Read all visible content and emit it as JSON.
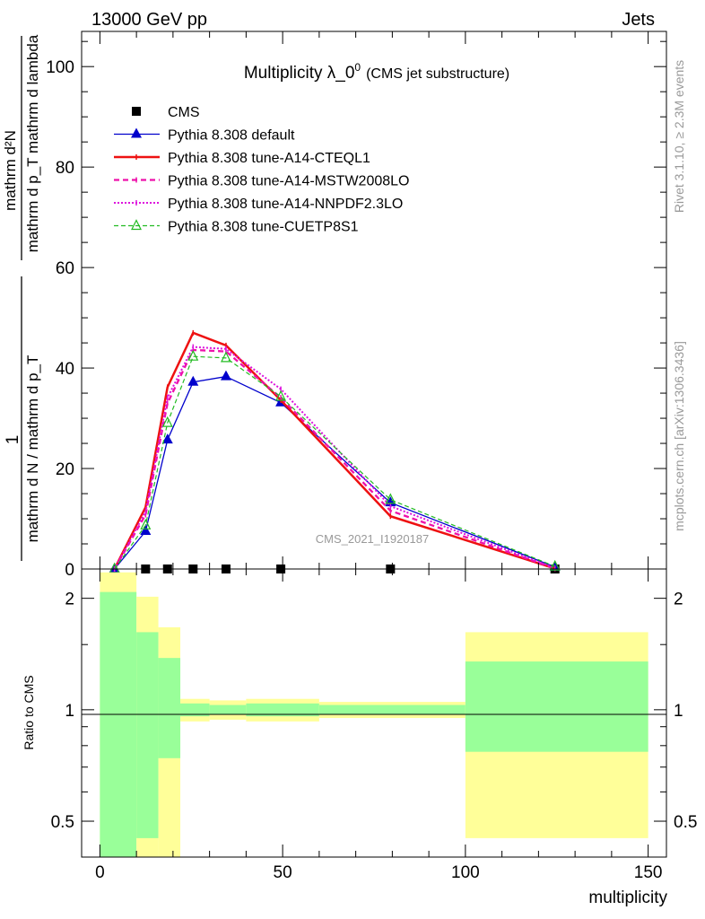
{
  "header": {
    "left": "13000 GeV pp",
    "right": "Jets"
  },
  "title": {
    "main": "Multiplicity λ_0",
    "sup": "0",
    "sub": "(CMS jet substructure)"
  },
  "ylabel": {
    "num": "mathrm d²N",
    "den": "mathrm d p_T mathrm d lambda",
    "pre_num": "1",
    "pre_den": "mathrm d N / mathrm d p_T"
  },
  "side": {
    "top": "Rivet 3.1.10, ≥ 2.3M events",
    "bottom": "mcplots.cern.ch [arXiv:1306.3436]"
  },
  "watermark": "CMS_2021_I1920187",
  "ratio_label": "Ratio to CMS",
  "xlabel": "multiplicity",
  "colors": {
    "cms": "#000000",
    "default": "#0000cc",
    "cteql1": "#ee1111",
    "mstw": "#ee11aa",
    "nnpdf": "#dd11dd",
    "cuetp": "#22bb22",
    "band_inner": "#99ff99",
    "band_outer": "#ffff99"
  },
  "chart_data": {
    "type": "line",
    "x": [
      4,
      12.5,
      18.5,
      25.5,
      34.5,
      49.5,
      79.5,
      124.5
    ],
    "xlim": [
      -5,
      155
    ],
    "ylim": [
      0,
      107
    ],
    "xticks": [
      0,
      50,
      100,
      150
    ],
    "yticks": [
      0,
      20,
      40,
      60,
      80,
      100
    ],
    "series": [
      {
        "name": "CMS",
        "key": "cms",
        "values": [
          0,
          0,
          0,
          0,
          0,
          0,
          0,
          0
        ]
      },
      {
        "name": "Pythia 8.308 default",
        "key": "default",
        "values": [
          0,
          7.5,
          25.7,
          37.2,
          38.3,
          33.1,
          13.2,
          0.4
        ]
      },
      {
        "name": "Pythia 8.308 tune-A14-CTEQL1",
        "key": "cteql1",
        "values": [
          0,
          12.3,
          36.2,
          47,
          44.5,
          33.6,
          10.5,
          0.1
        ]
      },
      {
        "name": "Pythia 8.308 tune-A14-MSTW2008LO",
        "key": "mstw",
        "values": [
          0,
          10.8,
          33,
          43.6,
          43.3,
          34.1,
          11.6,
          0.1
        ]
      },
      {
        "name": "Pythia 8.308 tune-A14-NNPDF2.3LO",
        "key": "nnpdf",
        "values": [
          0,
          11.4,
          34.1,
          44.2,
          43.8,
          35.8,
          12.5,
          0.2
        ]
      },
      {
        "name": "Pythia 8.308 tune-CUETP8S1",
        "key": "cuetp",
        "values": [
          0,
          8.7,
          29.1,
          42.3,
          42,
          34.3,
          13.8,
          0.5
        ]
      }
    ],
    "ratio": {
      "yticks": [
        0.5,
        1,
        2
      ],
      "bins": [
        [
          0,
          10
        ],
        [
          10,
          16
        ],
        [
          16,
          22
        ],
        [
          22,
          30
        ],
        [
          30,
          40
        ],
        [
          40,
          60
        ],
        [
          60,
          100
        ],
        [
          100,
          150
        ]
      ],
      "inner": [
        [
          0.33,
          2.08
        ],
        [
          0.45,
          1.62
        ],
        [
          0.74,
          1.38
        ],
        [
          0.96,
          1.04
        ],
        [
          0.97,
          1.03
        ],
        [
          0.96,
          1.04
        ],
        [
          0.97,
          1.03
        ],
        [
          0.77,
          1.35
        ]
      ],
      "outer": [
        [
          0.33,
          2.35
        ],
        [
          0.33,
          2.02
        ],
        [
          0.33,
          1.67
        ],
        [
          0.93,
          1.07
        ],
        [
          0.94,
          1.06
        ],
        [
          0.93,
          1.07
        ],
        [
          0.95,
          1.05
        ],
        [
          0.45,
          1.62
        ]
      ]
    }
  }
}
